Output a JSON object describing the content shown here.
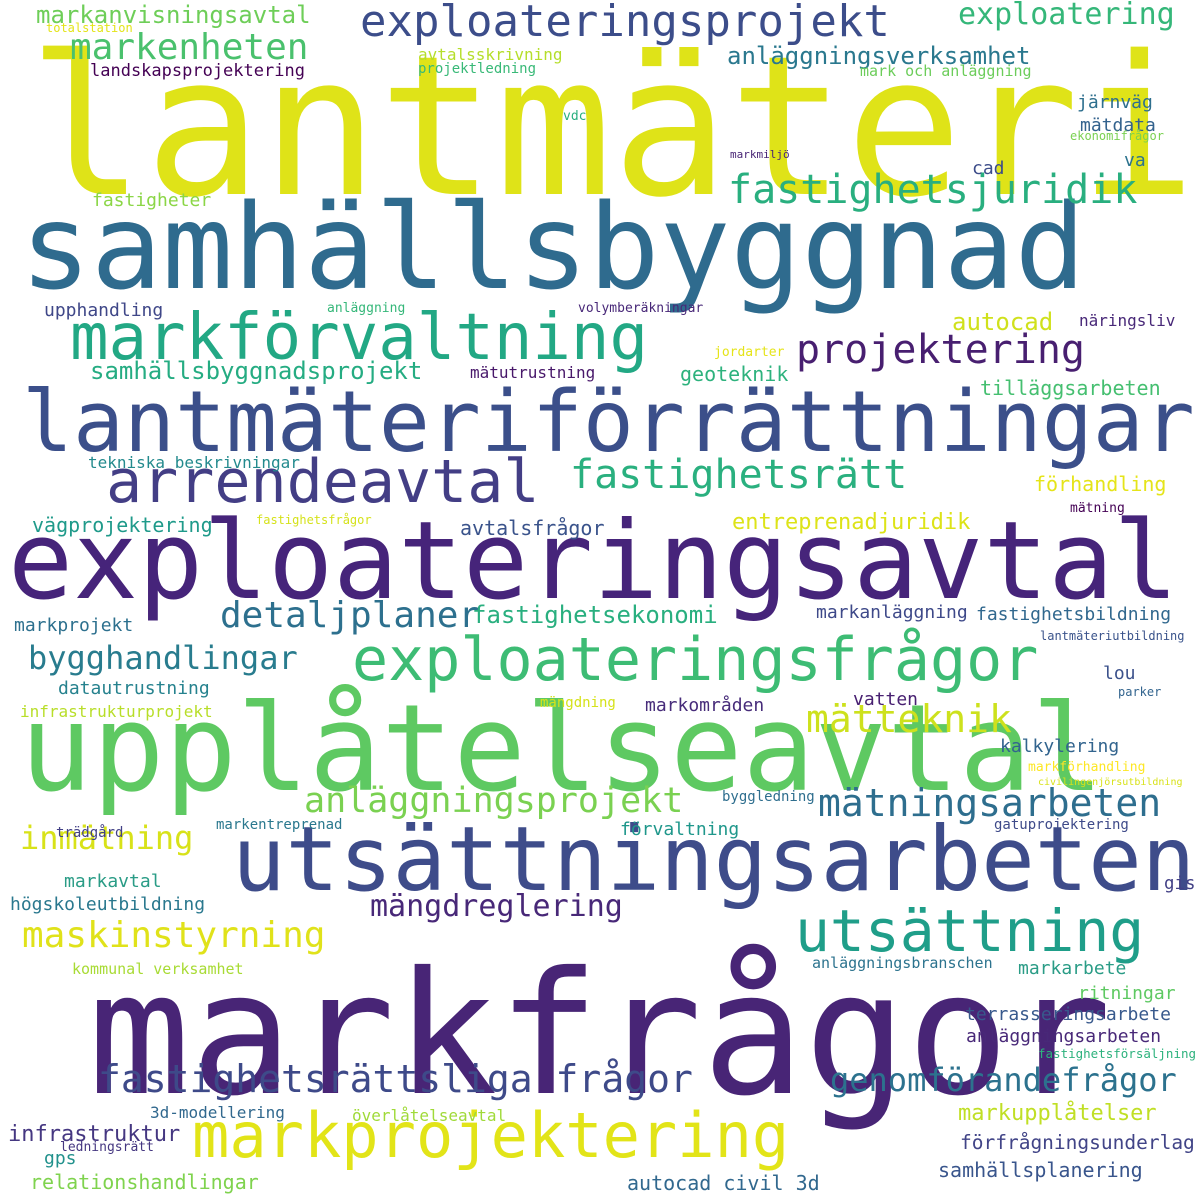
{
  "word_cloud": {
    "words": [
      {
        "text": "lantmäteri",
        "color": "#dfe318"
      },
      {
        "text": "samhällsbyggnad",
        "color": "#2f6b8e"
      },
      {
        "text": "exploateringsavtal",
        "color": "#46247a"
      },
      {
        "text": "markfrågor",
        "color": "#482576"
      },
      {
        "text": "upplåtelseavtal",
        "color": "#5ec962"
      },
      {
        "text": "lantmäteriförrättningar",
        "color": "#3b4f8a"
      },
      {
        "text": "utsättningsarbeten",
        "color": "#3e4c8a"
      },
      {
        "text": "markprojektering",
        "color": "#e2e418"
      },
      {
        "text": "exploateringsprojekt",
        "color": "#3c4d8a"
      },
      {
        "text": "markförvaltning",
        "color": "#22a884"
      },
      {
        "text": "exploateringsfrågor",
        "color": "#3dbc74"
      },
      {
        "text": "arrendeavtal",
        "color": "#433e85"
      },
      {
        "text": "utsättning",
        "color": "#1f9e89"
      },
      {
        "text": "fastighetsjuridik",
        "color": "#29af7f"
      },
      {
        "text": "fastighetsrätt",
        "color": "#2ab07f"
      },
      {
        "text": "projektering",
        "color": "#481f70"
      },
      {
        "text": "fastighetsrättsliga frågor",
        "color": "#3e4a89"
      },
      {
        "text": "markenheten",
        "color": "#4ac16d"
      },
      {
        "text": "detaljplaner",
        "color": "#2d708e"
      },
      {
        "text": "maskinstyrning",
        "color": "#e0e21a"
      },
      {
        "text": "mätteknik",
        "color": "#cde11d"
      },
      {
        "text": "mätningsarbeten",
        "color": "#2e6e8e"
      },
      {
        "text": "anläggningsprojekt",
        "color": "#7ad151"
      },
      {
        "text": "bygghandlingar",
        "color": "#287c8e"
      },
      {
        "text": "genomförandefrågor",
        "color": "#2c728e"
      },
      {
        "text": "inmätning",
        "color": "#d8e219"
      },
      {
        "text": "mängdreglering",
        "color": "#482878"
      },
      {
        "text": "exploatering",
        "color": "#35b779"
      },
      {
        "text": "markanvisningsavtal",
        "color": "#6ece58"
      },
      {
        "text": "anläggningsverksamhet",
        "color": "#2a788e"
      },
      {
        "text": "samhällsbyggnadsprojekt",
        "color": "#25ac82"
      },
      {
        "text": "fastighetsekonomi",
        "color": "#29af7f"
      },
      {
        "text": "entreprenadjuridik",
        "color": "#dde318"
      },
      {
        "text": "markupplåtelser",
        "color": "#c0df25"
      },
      {
        "text": "infrastruktur",
        "color": "#453781"
      },
      {
        "text": "förfrågningsunderlag",
        "color": "#414487"
      },
      {
        "text": "samhällsplanering",
        "color": "#39558c"
      },
      {
        "text": "relationshandlingar",
        "color": "#7fd34e"
      },
      {
        "text": "autocad civil 3d",
        "color": "#31688e"
      },
      {
        "text": "autocad",
        "color": "#d0e11c"
      },
      {
        "text": "geoteknik",
        "color": "#2db27d"
      },
      {
        "text": "tilläggsarbeten",
        "color": "#45bf70"
      },
      {
        "text": "förhandling",
        "color": "#e5e419"
      },
      {
        "text": "avtalsfrågor",
        "color": "#3a538b"
      },
      {
        "text": "vägprojektering",
        "color": "#1f9a8a"
      },
      {
        "text": "markprojekt",
        "color": "#2d708e"
      },
      {
        "text": "datautrustning",
        "color": "#26828e"
      },
      {
        "text": "kalkylering",
        "color": "#32648e"
      },
      {
        "text": "markområden",
        "color": "#472c7a"
      },
      {
        "text": "vatten",
        "color": "#482071"
      },
      {
        "text": "lou",
        "color": "#3b518b"
      },
      {
        "text": "förvaltning",
        "color": "#1f978b"
      },
      {
        "text": "markanläggning",
        "color": "#3e4989"
      },
      {
        "text": "fastighetsbildning",
        "color": "#31688e"
      },
      {
        "text": "fastigheter",
        "color": "#8bd646"
      },
      {
        "text": "upphandling",
        "color": "#3f4788"
      },
      {
        "text": "mätdata",
        "color": "#33628d"
      },
      {
        "text": "järnväg",
        "color": "#2e6f8e"
      },
      {
        "text": "cad",
        "color": "#3d4d8a"
      },
      {
        "text": "va",
        "color": "#2c738e"
      },
      {
        "text": "landskapsprojektering",
        "color": "#440154"
      },
      {
        "text": "mätutrustning",
        "color": "#48186a"
      },
      {
        "text": "näringsliv",
        "color": "#482878"
      },
      {
        "text": "tekniska beskrivningar",
        "color": "#238a8d"
      },
      {
        "text": "markavtal",
        "color": "#2a9c86"
      },
      {
        "text": "högskoleutbildning",
        "color": "#2a788e"
      },
      {
        "text": "gis",
        "color": "#424086"
      },
      {
        "text": "markarbete",
        "color": "#2a9c86"
      },
      {
        "text": "ritningar",
        "color": "#5ec962"
      },
      {
        "text": "terrasseringsarbete",
        "color": "#38598c"
      },
      {
        "text": "anläggningsarbeten",
        "color": "#482878"
      },
      {
        "text": "gps",
        "color": "#21918c"
      },
      {
        "text": "3d-modellering",
        "color": "#31688e"
      },
      {
        "text": "överlåtelseavtal",
        "color": "#a0da39"
      },
      {
        "text": "anläggningsbranschen",
        "color": "#2c738e"
      },
      {
        "text": "kommunal verksamhet",
        "color": "#a8db34"
      },
      {
        "text": "markentreprenad",
        "color": "#2a788e"
      },
      {
        "text": "byggledning",
        "color": "#2e6e8e"
      },
      {
        "text": "gatuprojektering",
        "color": "#3e4a89"
      },
      {
        "text": "trädgård",
        "color": "#424086"
      },
      {
        "text": "avtalsskrivning",
        "color": "#b5de2b"
      },
      {
        "text": "projektledning",
        "color": "#38b977"
      },
      {
        "text": "mark och anläggning",
        "color": "#6ccd5a"
      },
      {
        "text": "totalstation",
        "color": "#e3e418"
      },
      {
        "text": "vdc",
        "color": "#29af7f"
      },
      {
        "text": "ekonomifrågor",
        "color": "#7ad151"
      },
      {
        "text": "markmiljö",
        "color": "#482575"
      },
      {
        "text": "anläggning",
        "color": "#35b779"
      },
      {
        "text": "volymberäkningar",
        "color": "#482878"
      },
      {
        "text": "jordarter",
        "color": "#e5e419"
      },
      {
        "text": "fastighetsfrågor",
        "color": "#d5e21a"
      },
      {
        "text": "mätning",
        "color": "#440154"
      },
      {
        "text": "lantmäteriutbildning",
        "color": "#3a538b"
      },
      {
        "text": "infrastrukturprojekt",
        "color": "#b8de29"
      },
      {
        "text": "mängdning",
        "color": "#d5e21a"
      },
      {
        "text": "parker",
        "color": "#32648e"
      },
      {
        "text": "markförhandling",
        "color": "#fde725"
      },
      {
        "text": "civilingenjörsutbildning",
        "color": "#d8e219"
      },
      {
        "text": "fastighetsförsäljning",
        "color": "#2db27d"
      },
      {
        "text": "ledningsrätt",
        "color": "#453781"
      }
    ]
  }
}
